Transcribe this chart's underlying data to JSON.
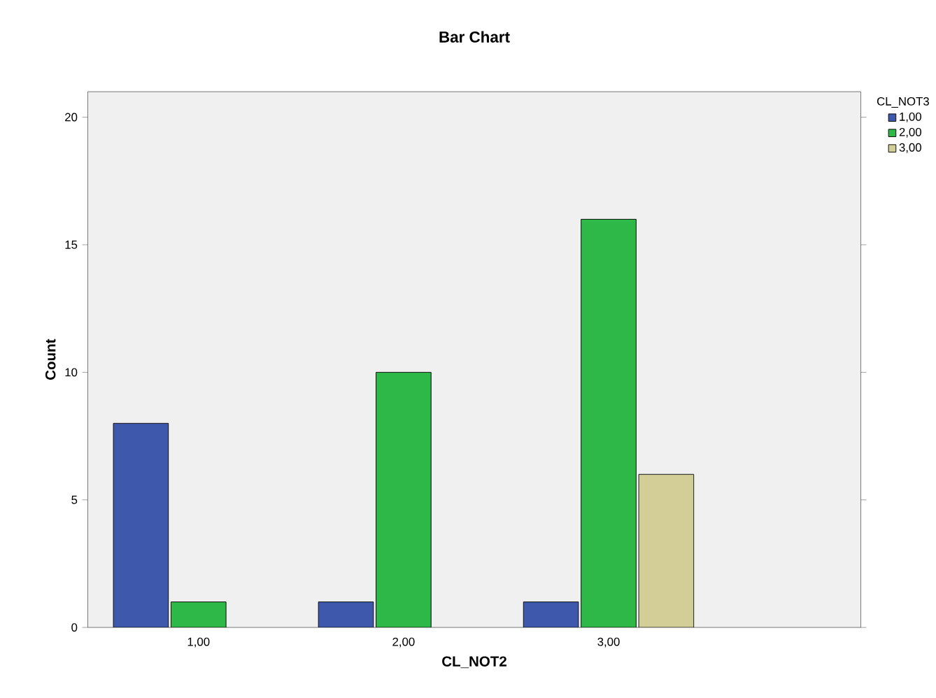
{
  "chart_data": {
    "type": "bar",
    "title": "Bar Chart",
    "xlabel": "CL_NOT2",
    "ylabel": "Count",
    "legend_title": "CL_NOT3",
    "categories": [
      "1,00",
      "2,00",
      "3,00"
    ],
    "series": [
      {
        "name": "1,00",
        "color": "#3e58ac",
        "values": [
          8,
          1,
          1
        ]
      },
      {
        "name": "2,00",
        "color": "#2eb848",
        "values": [
          1,
          10,
          16
        ]
      },
      {
        "name": "3,00",
        "color": "#d3ce97",
        "values": [
          null,
          null,
          6
        ]
      }
    ],
    "ylim": [
      0,
      21
    ],
    "yticks": [
      0,
      5,
      10,
      15,
      20
    ],
    "grid": false,
    "legend": "top right"
  }
}
